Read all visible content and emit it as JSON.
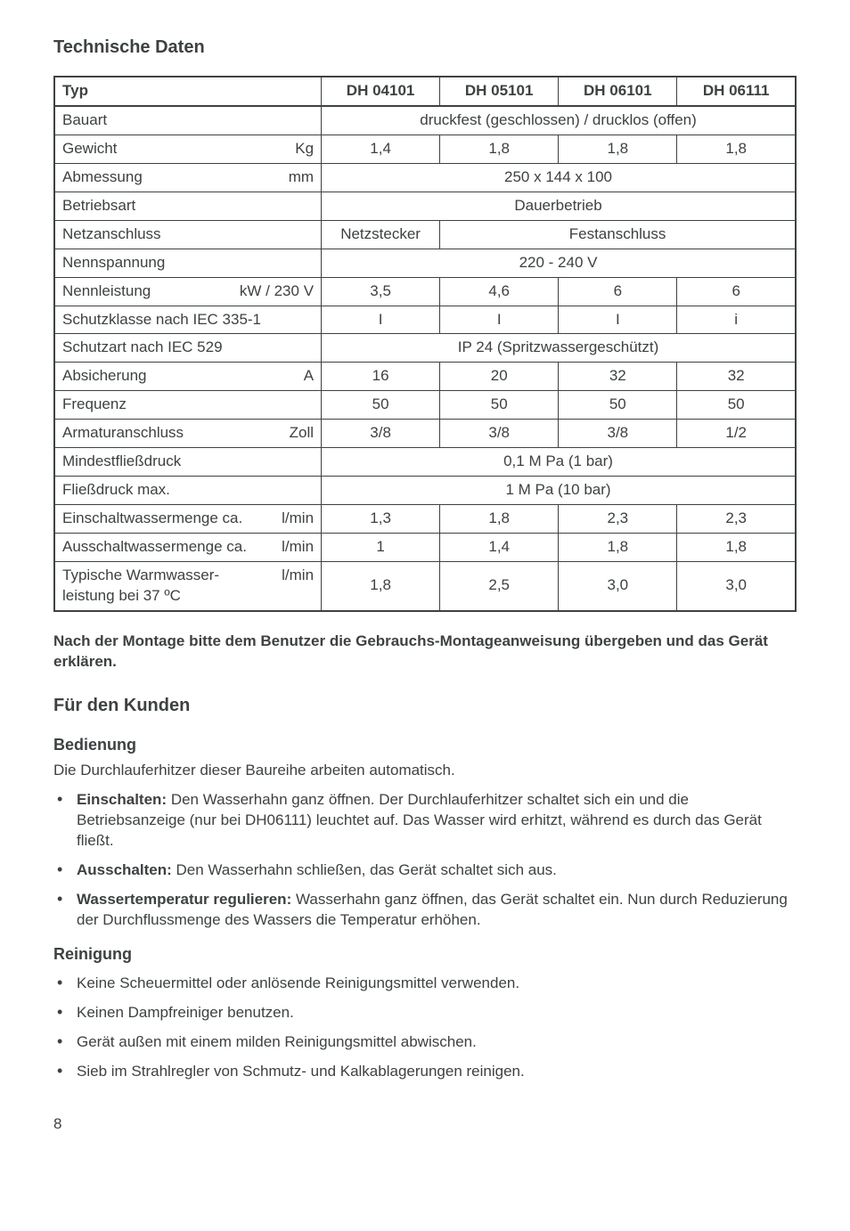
{
  "title_tech": "Technische Daten",
  "table": {
    "cols": [
      {
        "label": "Typ",
        "width_pct": 36
      },
      {
        "label": "DH 04101",
        "width_pct": 16
      },
      {
        "label": "DH 05101",
        "width_pct": 16
      },
      {
        "label": "DH 06101",
        "width_pct": 16
      },
      {
        "label": "DH 06111",
        "width_pct": 16
      }
    ],
    "rows": [
      {
        "label": "Bauart",
        "unit": "",
        "span_text": "druckfest (geschlossen) / drucklos (offen)"
      },
      {
        "label": "Gewicht",
        "unit": "Kg",
        "vals": [
          "1,4",
          "1,8",
          "1,8",
          "1,8"
        ]
      },
      {
        "label": "Abmessung",
        "unit": "mm",
        "span_text": "250 x 144 x 100"
      },
      {
        "label": "Betriebsart",
        "unit": "",
        "span_text": "Dauerbetrieb"
      },
      {
        "label": "Netzanschluss",
        "unit": "",
        "first": "Netzstecker",
        "rest_span_text": "Festanschluss"
      },
      {
        "label": "Nennspannung",
        "unit": "",
        "span_text": "220 - 240 V"
      },
      {
        "label": "Nennleistung",
        "unit": "kW / 230 V",
        "vals": [
          "3,5",
          "4,6",
          "6",
          "6"
        ]
      },
      {
        "label": "Schutzklasse nach IEC 335-1",
        "unit": "",
        "vals": [
          "I",
          "I",
          "I",
          "i"
        ]
      },
      {
        "label": "Schutzart nach IEC 529",
        "unit": "",
        "span_text": "IP 24 (Spritzwassergeschützt)"
      },
      {
        "label": "Absicherung",
        "unit": "A",
        "vals": [
          "16",
          "20",
          "32",
          "32"
        ]
      },
      {
        "label": "Frequenz",
        "unit": "",
        "vals": [
          "50",
          "50",
          "50",
          "50"
        ]
      },
      {
        "label": "Armaturanschluss",
        "unit": "Zoll",
        "vals": [
          "3/8",
          "3/8",
          "3/8",
          "1/2"
        ]
      },
      {
        "label": "Mindestfließdruck",
        "unit": "",
        "span_text": "0,1 M Pa (1 bar)"
      },
      {
        "label": "Fließdruck max.",
        "unit": "",
        "span_text": "1 M Pa (10 bar)"
      },
      {
        "label": "Einschaltwassermenge ca.",
        "unit": "l/min",
        "vals": [
          "1,3",
          "1,8",
          "2,3",
          "2,3"
        ]
      },
      {
        "label": "Ausschaltwassermenge ca.",
        "unit": "l/min",
        "vals": [
          "1",
          "1,4",
          "1,8",
          "1,8"
        ]
      },
      {
        "label": "Typische Warmwasser-\nleistung bei 37 ºC",
        "unit": "l/min",
        "vals": [
          "1,8",
          "2,5",
          "3,0",
          "3,0"
        ]
      }
    ]
  },
  "montage_note": "Nach der Montage bitte dem Benutzer die Gebrauchs-Montageanweisung übergeben und das Gerät erklären.",
  "title_kunde": "Für den Kunden",
  "bedienung": {
    "heading": "Bedienung",
    "intro": "Die Durchlauferhitzer dieser Baureihe arbeiten automatisch.",
    "items": [
      {
        "bold": "Einschalten:",
        "text": " Den Wasserhahn ganz öffnen. Der Durchlauferhitzer schaltet sich ein und die Betriebsanzeige (nur bei DH06111) leuchtet auf. Das Wasser wird erhitzt, während es durch das Gerät fließt."
      },
      {
        "bold": "Ausschalten:",
        "text": " Den Wasserhahn schließen, das Gerät schaltet sich aus."
      },
      {
        "bold": "Wassertemperatur regulieren:",
        "text": " Wasserhahn ganz öffnen, das Gerät schaltet ein. Nun durch Reduzierung der Durchflussmenge des Wassers die Temperatur erhöhen."
      }
    ]
  },
  "reinigung": {
    "heading": "Reinigung",
    "items": [
      "Keine Scheuermittel oder anlösende Reinigungsmittel verwenden.",
      "Keinen Dampfreiniger benutzen.",
      "Gerät außen mit einem milden Reinigungsmittel abwischen.",
      "Sieb im Strahlregler von Schmutz- und Kalkablagerungen reinigen."
    ]
  },
  "page_number": "8"
}
